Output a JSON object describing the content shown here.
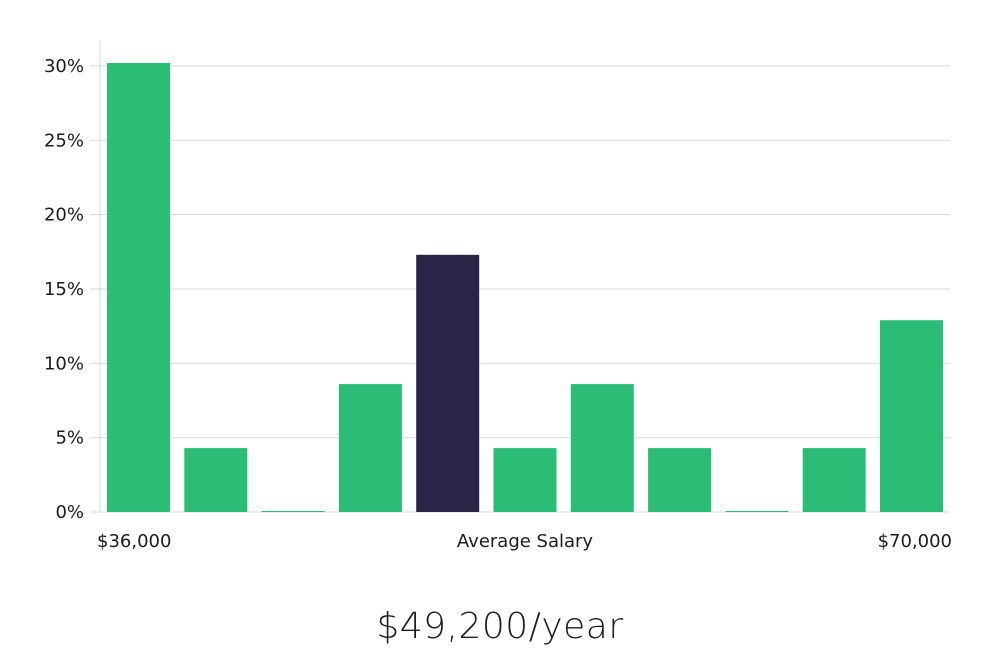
{
  "chart_data": {
    "type": "bar",
    "categories": [
      "1",
      "2",
      "3",
      "4",
      "5",
      "6",
      "7",
      "8",
      "9",
      "10",
      "11"
    ],
    "values": [
      30.2,
      4.3,
      0,
      8.6,
      17.3,
      4.3,
      8.6,
      4.3,
      0,
      4.3,
      12.9
    ],
    "highlight_index": 4,
    "ylim": [
      0,
      30
    ],
    "y_ticks": [
      "0%",
      "5%",
      "10%",
      "15%",
      "20%",
      "25%",
      "30%"
    ],
    "y_tick_values": [
      0,
      5,
      10,
      15,
      20,
      25,
      30
    ],
    "x_labels": {
      "left": "$36,000",
      "center": "Average Salary",
      "right": "$70,000"
    },
    "grid": true,
    "colors": {
      "bar": "#2bbd76",
      "highlight": "#282547"
    }
  },
  "headline": "$49,200/year"
}
